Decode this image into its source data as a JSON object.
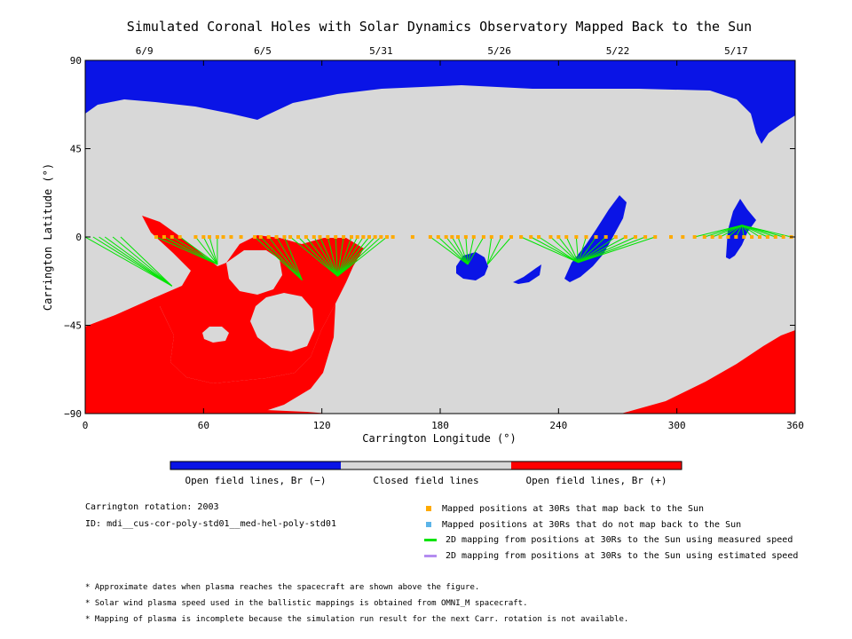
{
  "chart_data": {
    "type": "map",
    "title": "Simulated Coronal Holes with Solar Dynamics Observatory Mapped Back to the Sun",
    "xlabel": "Carrington Longitude (°)",
    "ylabel": "Carrington Latitude (°)",
    "xlim": [
      0,
      360
    ],
    "ylim": [
      -90,
      90
    ],
    "xticks": [
      0,
      60,
      120,
      180,
      240,
      300,
      360
    ],
    "yticks": [
      -90,
      -45,
      0,
      45,
      90
    ],
    "yticklabels": [
      "−90",
      "−45",
      "0",
      "45",
      "90"
    ],
    "top_axis_dates": [
      {
        "label": "6/9",
        "lon": 30
      },
      {
        "label": "6/5",
        "lon": 90
      },
      {
        "label": "5/31",
        "lon": 150
      },
      {
        "label": "5/26",
        "lon": 210
      },
      {
        "label": "5/22",
        "lon": 270
      },
      {
        "label": "5/17",
        "lon": 330
      }
    ],
    "colors": {
      "open_negative": "#0a14e6",
      "closed": "#d8d8d8",
      "open_positive": "#ff0000",
      "mapped_back": "#ffaa00",
      "not_mapped_back": "#5cb4e8",
      "measured_speed": "#00e400",
      "estimated_speed": "#b48cf0"
    },
    "mapped_longitudes": [
      36,
      40,
      44,
      48,
      56,
      60,
      63,
      67,
      70,
      74,
      79,
      86,
      89,
      93,
      97,
      101,
      104,
      108,
      112,
      116,
      119,
      123,
      127,
      131,
      135,
      138,
      141,
      144,
      147,
      150,
      153,
      156,
      166,
      175,
      179,
      183,
      186,
      189,
      193,
      197,
      202,
      206,
      211,
      216,
      221,
      226,
      230,
      236,
      240,
      244,
      249,
      254,
      259,
      264,
      269,
      274,
      279,
      284,
      289,
      297,
      303,
      309,
      314,
      318,
      322,
      326,
      330,
      334,
      338,
      342,
      346,
      350,
      354,
      358
    ],
    "mapping_targets": [
      {
        "from_lon": [
          0,
          4,
          7,
          10,
          14,
          18
        ],
        "to": [
          44,
          -25
        ]
      },
      {
        "from_lon": [
          36,
          40,
          44,
          48,
          56,
          60,
          63,
          67
        ],
        "to": [
          67,
          -14
        ]
      },
      {
        "from_lon": [
          86,
          89,
          93,
          97,
          101
        ],
        "to": [
          110,
          -22
        ]
      },
      {
        "from_lon": [
          104,
          108,
          112,
          116,
          119,
          123,
          127,
          131,
          135,
          138,
          141,
          144,
          147,
          150,
          153
        ],
        "to": [
          128,
          -20
        ]
      },
      {
        "from_lon": [
          175,
          179,
          183,
          186,
          189,
          193,
          197,
          202
        ],
        "to": [
          194,
          -14
        ]
      },
      {
        "from_lon": [
          206,
          211,
          216
        ],
        "to": [
          204,
          -14
        ]
      },
      {
        "from_lon": [
          221,
          226,
          230,
          236,
          240,
          244,
          249,
          254,
          259,
          264,
          269,
          274,
          279,
          284,
          289
        ],
        "to": [
          250,
          -13
        ]
      },
      {
        "from_lon": [
          309,
          314,
          318,
          322,
          326,
          330,
          334,
          338,
          342,
          346,
          350,
          354,
          358
        ],
        "to": [
          333,
          6
        ]
      }
    ],
    "colorbar": {
      "labels": [
        "Open field lines, Br (−)",
        "Closed field lines",
        "Open field lines, Br (+)"
      ]
    }
  },
  "info": {
    "rotation": "Carrington rotation: 2003",
    "id": "ID: mdi__cus-cor-poly-std01__med-hel-poly-std01"
  },
  "legend": [
    {
      "label": "Mapped positions at 30Rs that map back to the Sun",
      "color": "#ffaa00",
      "kind": "square"
    },
    {
      "label": "Mapped positions at 30Rs that do not map back to the Sun",
      "color": "#5cb4e8",
      "kind": "square"
    },
    {
      "label": "2D mapping from positions at 30Rs to the Sun using measured speed",
      "color": "#00e400",
      "kind": "line"
    },
    {
      "label": "2D mapping from positions at 30Rs to the Sun using estimated speed",
      "color": "#b48cf0",
      "kind": "line"
    }
  ],
  "notes": [
    "* Approximate dates when plasma reaches the spacecraft are shown above the figure.",
    "* Solar wind plasma speed used in the ballistic mappings is obtained from OMNI_M spacecraft.",
    "* Mapping of plasma is incomplete because the simulation run result for the next Carr. rotation is not available."
  ]
}
